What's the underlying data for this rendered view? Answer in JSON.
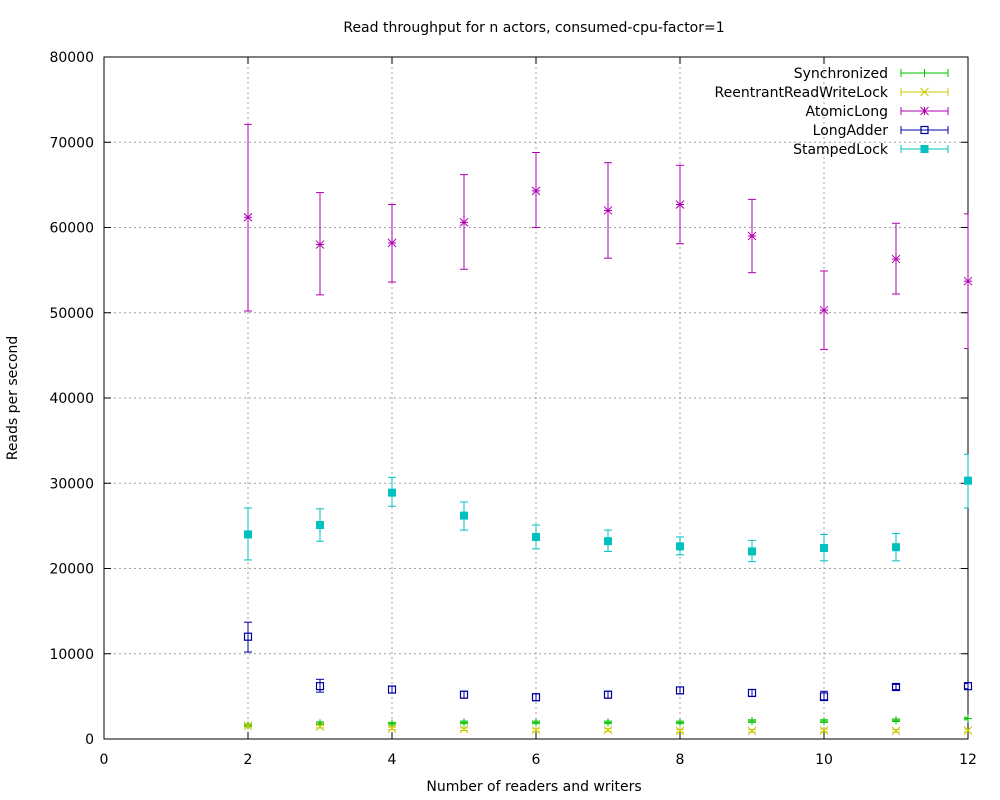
{
  "chart_data": {
    "type": "scatter",
    "title": "Read throughput for n actors, consumed-cpu-factor=1",
    "xlabel": "Number of readers and writers",
    "ylabel": "Reads per second",
    "xlim": [
      0,
      12
    ],
    "ylim": [
      0,
      80000
    ],
    "x_ticks": [
      "0",
      "2",
      "4",
      "6",
      "8",
      "10",
      "12"
    ],
    "y_ticks": [
      "0",
      "10000",
      "20000",
      "30000",
      "40000",
      "50000",
      "60000",
      "70000",
      "80000"
    ],
    "grid": true,
    "legend_position": "top-right",
    "x": [
      2,
      3,
      4,
      5,
      6,
      7,
      8,
      9,
      10,
      11,
      12
    ],
    "series": [
      {
        "name": "Synchronized",
        "color": "#00c000",
        "marker": "plus",
        "values": [
          1600,
          1850,
          1800,
          1950,
          1950,
          1950,
          1950,
          2100,
          2100,
          2200,
          2400
        ],
        "err_low": [
          1450,
          1700,
          1650,
          1800,
          1800,
          1800,
          1800,
          1950,
          1950,
          2050,
          2250
        ],
        "err_high": [
          1750,
          2000,
          1950,
          2100,
          2100,
          2100,
          2100,
          2250,
          2250,
          2350,
          2550
        ]
      },
      {
        "name": "ReentrantReadWriteLock",
        "color": "#c8c800",
        "marker": "cross",
        "values": [
          1550,
          1450,
          1250,
          1150,
          1050,
          1050,
          950,
          950,
          1000,
          950,
          1000
        ],
        "err_low": [
          1400,
          1300,
          1100,
          1000,
          900,
          900,
          800,
          800,
          850,
          800,
          850
        ],
        "err_high": [
          1700,
          1600,
          1400,
          1300,
          1200,
          1200,
          1100,
          1100,
          1150,
          1100,
          1150
        ]
      },
      {
        "name": "AtomicLong",
        "color": "#b000b0",
        "marker": "star",
        "values": [
          61200,
          58000,
          58200,
          60600,
          64300,
          62000,
          62700,
          59000,
          50300,
          56300,
          53700
        ],
        "err_low": [
          50200,
          52100,
          53600,
          55100,
          60000,
          56400,
          58100,
          54700,
          45700,
          52200,
          45800
        ],
        "err_high": [
          72100,
          64100,
          62700,
          66200,
          68800,
          67600,
          67300,
          63300,
          54900,
          60500,
          61600
        ]
      },
      {
        "name": "LongAdder",
        "color": "#0000a0",
        "marker": "open-square",
        "values": [
          12000,
          6200,
          5800,
          5200,
          4900,
          5200,
          5700,
          5400,
          5000,
          6100,
          6200
        ],
        "err_low": [
          10200,
          5500,
          5400,
          4800,
          4500,
          4800,
          5300,
          5000,
          4500,
          5800,
          5900
        ],
        "err_high": [
          13700,
          7000,
          6200,
          5600,
          5300,
          5600,
          6100,
          5800,
          5600,
          6400,
          6500
        ]
      },
      {
        "name": "StampedLock",
        "color": "#00c0c0",
        "marker": "filled-square",
        "values": [
          24000,
          25100,
          28900,
          26200,
          23700,
          23200,
          22600,
          22000,
          22400,
          22500,
          30300
        ],
        "err_low": [
          21000,
          23200,
          27300,
          24500,
          22300,
          22000,
          21600,
          20800,
          20900,
          20900,
          27100
        ],
        "err_high": [
          27100,
          27000,
          30700,
          27800,
          25100,
          24500,
          23700,
          23300,
          24000,
          24100,
          33400
        ]
      }
    ]
  }
}
